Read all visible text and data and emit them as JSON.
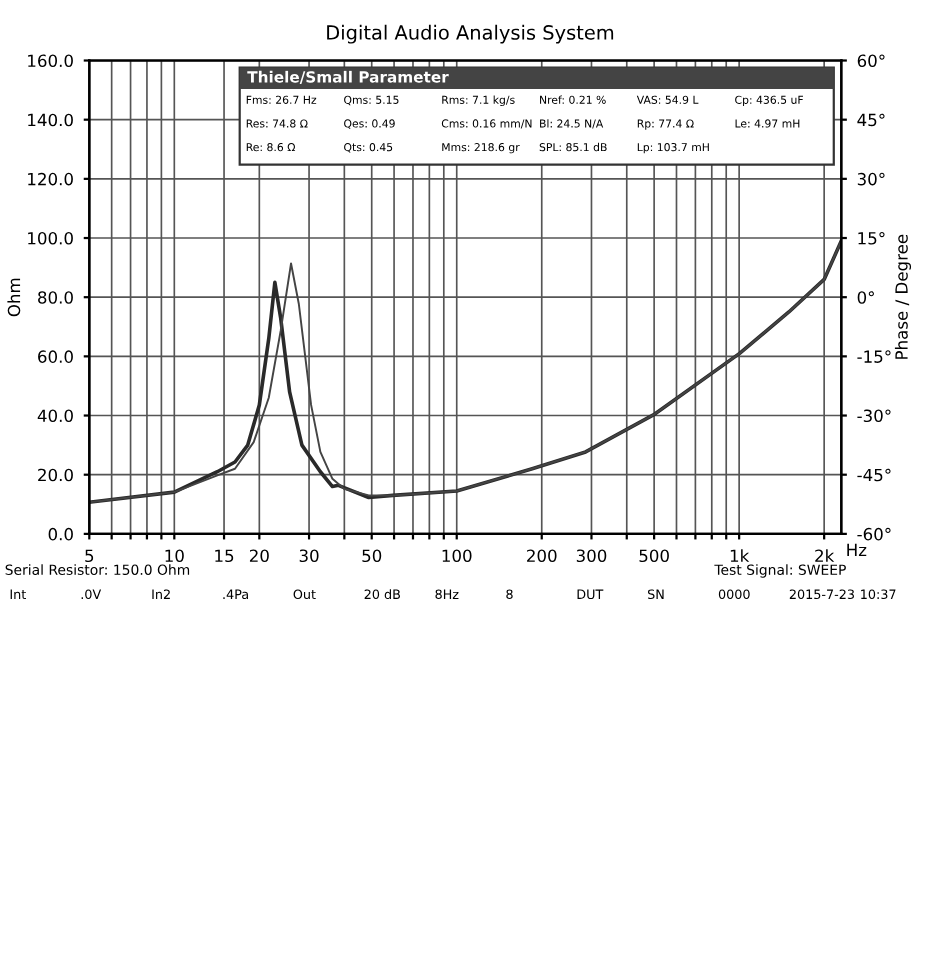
{
  "chart_data": {
    "type": "line",
    "title": "Digital Audio Analysis System",
    "ylabel": "Ohm",
    "y2label": "Phase / Degree",
    "xlabel": "Hz",
    "log": "x",
    "grid": true,
    "marker": "none",
    "line_style": "solid",
    "xlim": [
      5,
      2300
    ],
    "ylim": [
      0,
      160
    ],
    "y2lim": [
      -60,
      60
    ],
    "xticks": [
      5,
      {
        "value": 6,
        "label": null
      },
      {
        "value": 7,
        "label": null
      },
      {
        "value": 8,
        "label": null
      },
      {
        "value": 9,
        "label": null
      },
      10,
      15,
      20,
      30,
      {
        "value": 40,
        "label": null
      },
      50,
      {
        "value": 60,
        "label": null
      },
      {
        "value": 70,
        "label": null
      },
      {
        "value": 80,
        "label": null
      },
      {
        "value": 90,
        "label": null
      },
      100,
      200,
      300,
      {
        "value": 400,
        "label": null
      },
      500,
      {
        "value": 600,
        "label": null
      },
      {
        "value": 700,
        "label": null
      },
      {
        "value": 800,
        "label": null
      },
      {
        "value": 900,
        "label": null
      },
      {
        "value": 1000,
        "label": "1k"
      },
      {
        "value": 2000,
        "label": "2k"
      }
    ],
    "yticks": [
      {
        "value": 0,
        "label": "0.0"
      },
      {
        "value": 20,
        "label": "20.0"
      },
      {
        "value": 40,
        "label": "40.0"
      },
      {
        "value": 60,
        "label": "60.0"
      },
      {
        "value": 80,
        "label": "80.0"
      },
      {
        "value": 100,
        "label": "100.0"
      },
      {
        "value": 120,
        "label": "120.0"
      },
      {
        "value": 140,
        "label": "140.0"
      },
      {
        "value": 160,
        "label": "160.0"
      }
    ],
    "y2ticks": [
      {
        "value": -60,
        "label": "-60°"
      },
      {
        "value": -45,
        "label": "-45°"
      },
      {
        "value": -30,
        "label": "-30°"
      },
      {
        "value": -15,
        "label": "-15°"
      },
      {
        "value": 0,
        "label": "0°"
      },
      {
        "value": 15,
        "label": "15°"
      },
      {
        "value": 30,
        "label": "30°"
      },
      {
        "value": 45,
        "label": "45°"
      },
      {
        "value": 60,
        "label": "60°"
      }
    ],
    "series": [
      {
        "color": "#2a2a2a",
        "x": [
          5,
          10,
          14.2,
          16.4,
          18.2,
          20.0,
          21.6,
          22.7,
          23.8,
          25.6,
          28.3,
          32.9,
          36.3,
          38.1,
          48.8,
          59.4,
          100,
          185,
          286,
          497,
          1004,
          1500,
          2000,
          2300
        ],
        "values": [
          10.7,
          14.1,
          21,
          24.3,
          30,
          43.6,
          66,
          85,
          73,
          48,
          30,
          21,
          16,
          16.4,
          12.3,
          13,
          14.5,
          22,
          27.7,
          40.2,
          61,
          75,
          86,
          99
        ]
      },
      {
        "color": "#444444",
        "x": [
          5,
          10,
          14.2,
          16.4,
          19.1,
          21.6,
          23.8,
          25.9,
          27.6,
          30.5,
          32.9,
          36.3,
          40.0,
          48.8,
          59.4,
          100,
          185,
          286,
          497,
          1004,
          1500,
          2000,
          2300
        ],
        "values": [
          10.7,
          14.1,
          19.8,
          22,
          31,
          46,
          68.6,
          91.4,
          77.7,
          43.6,
          27.7,
          18.6,
          15.2,
          13,
          13,
          14.5,
          22,
          27.7,
          40.2,
          61,
          75,
          86,
          99
        ]
      }
    ],
    "annotations": [
      "Thiele/Small Parameter",
      "Fms: 26.7 Hz",
      "Qms: 5.15",
      "Rms: 7.1 kg/s",
      "Nref: 0.21 %",
      "VAS: 54.9 L",
      "Cp: 436.5 uF",
      "Res: 74.8 Ω",
      "Qes: 0.49",
      "Cms: 0.16 mm/N",
      "Bl: 24.5 N/A",
      "Rp: 77.4 Ω",
      "Le: 4.97 mH",
      "Re: 8.6 Ω",
      "Qts: 0.45",
      "Mms: 218.6 gr",
      "SPL: 85.1 dB",
      "Lp: 103.7 mH",
      "Serial Resistor: 150.0 Ohm",
      "Test Signal: SWEEP",
      "Int",
      ".0V",
      "In2",
      ".4Pa",
      "Out",
      "20 dB",
      "8Hz",
      "8",
      "DUT",
      "SN",
      "0000",
      "2015-7-23",
      "10:37"
    ]
  }
}
